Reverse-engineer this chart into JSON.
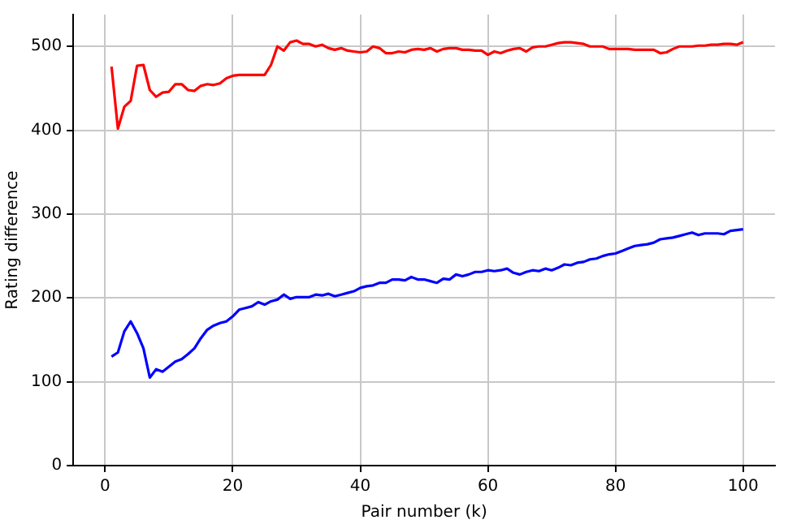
{
  "chart_data": {
    "type": "line",
    "xlabel": "Pair number (k)",
    "ylabel": "Rating difference",
    "x": [
      1,
      2,
      3,
      4,
      5,
      6,
      7,
      8,
      9,
      10,
      11,
      12,
      13,
      14,
      15,
      16,
      17,
      18,
      19,
      20,
      21,
      22,
      23,
      24,
      25,
      26,
      27,
      28,
      29,
      30,
      31,
      32,
      33,
      34,
      35,
      36,
      37,
      38,
      39,
      40,
      41,
      42,
      43,
      44,
      45,
      46,
      47,
      48,
      49,
      50,
      51,
      52,
      53,
      54,
      55,
      56,
      57,
      58,
      59,
      60,
      61,
      62,
      63,
      64,
      65,
      66,
      67,
      68,
      69,
      70,
      71,
      72,
      73,
      74,
      75,
      76,
      77,
      78,
      79,
      80,
      81,
      82,
      83,
      84,
      85,
      86,
      87,
      88,
      89,
      90,
      91,
      92,
      93,
      94,
      95,
      96,
      97,
      98,
      99,
      100
    ],
    "series": [
      {
        "color": "#ff0000",
        "values": [
          476,
          402,
          428,
          435,
          477,
          478,
          448,
          440,
          445,
          446,
          455,
          455,
          448,
          447,
          453,
          455,
          454,
          456,
          462,
          465,
          466,
          466,
          466,
          466,
          466,
          478,
          500,
          495,
          505,
          507,
          503,
          503,
          500,
          502,
          498,
          496,
          498,
          495,
          494,
          493,
          494,
          500,
          498,
          492,
          492,
          494,
          493,
          496,
          497,
          496,
          498,
          494,
          497,
          498,
          498,
          496,
          496,
          495,
          495,
          490,
          494,
          492,
          495,
          497,
          498,
          494,
          499,
          500,
          500,
          502,
          504,
          505,
          505,
          504,
          503,
          500,
          500,
          500,
          497,
          497,
          497,
          497,
          496,
          496,
          496,
          496,
          492,
          493,
          497,
          500,
          500,
          500,
          501,
          501,
          502,
          502,
          503,
          503,
          502,
          505
        ]
      },
      {
        "color": "#0000ff",
        "values": [
          130,
          135,
          160,
          172,
          158,
          140,
          105,
          115,
          112,
          118,
          124,
          127,
          133,
          140,
          152,
          162,
          167,
          170,
          172,
          178,
          186,
          188,
          190,
          195,
          192,
          196,
          198,
          204,
          199,
          201,
          201,
          201,
          204,
          203,
          205,
          202,
          204,
          206,
          208,
          212,
          214,
          215,
          218,
          218,
          222,
          222,
          221,
          225,
          222,
          222,
          220,
          218,
          223,
          222,
          228,
          226,
          228,
          231,
          231,
          233,
          232,
          233,
          235,
          230,
          228,
          231,
          233,
          232,
          235,
          233,
          236,
          240,
          239,
          242,
          243,
          246,
          247,
          250,
          252,
          253,
          256,
          259,
          262,
          263,
          264,
          266,
          270,
          271,
          272,
          274,
          276,
          278,
          275,
          277,
          277,
          277,
          276,
          280,
          281,
          282
        ]
      }
    ],
    "xlim": [
      -5,
      105
    ],
    "xticks": [
      0,
      20,
      40,
      60,
      80,
      100
    ],
    "ylim": [
      0,
      538
    ],
    "yticks": [
      0,
      100,
      200,
      300,
      400,
      500
    ],
    "grid": true,
    "legend": false,
    "marker": "none",
    "line_style": "solid"
  }
}
